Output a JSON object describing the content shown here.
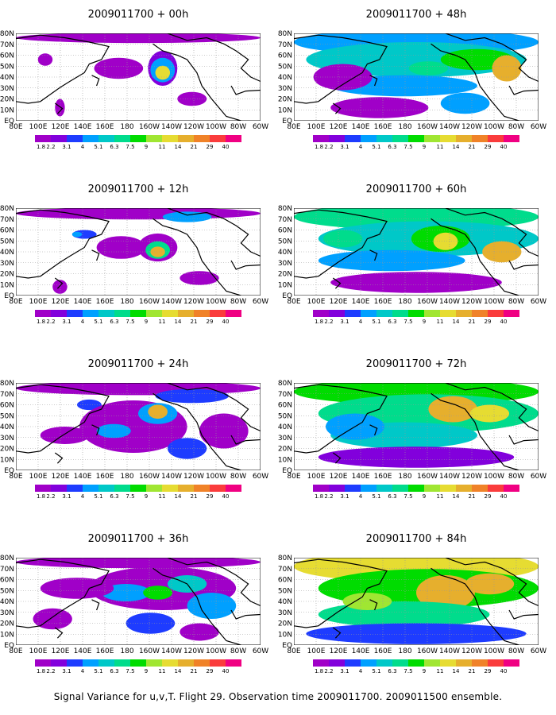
{
  "figure": {
    "caption": "Signal Variance for u,v,T. Flight 29. Observation time 2009011700. 2009011500 ensemble.",
    "longitude_ticks": [
      "80E",
      "100E",
      "120E",
      "140E",
      "160E",
      "180",
      "160W",
      "140W",
      "120W",
      "100W",
      "80W",
      "60W"
    ],
    "latitude_ticks": [
      "80N",
      "70N",
      "60N",
      "50N",
      "40N",
      "30N",
      "20N",
      "10N",
      "EQ"
    ],
    "colorbar": {
      "levels": [
        "1.8",
        "2.2",
        "3.1",
        "4",
        "5.1",
        "6.3",
        "7.5",
        "9",
        "11",
        "14",
        "21",
        "29",
        "40"
      ],
      "colors": [
        "#a000c8",
        "#8200dc",
        "#1e3cff",
        "#00a0ff",
        "#00c8c8",
        "#00dc8c",
        "#00dc00",
        "#a0e632",
        "#e6dc32",
        "#e6af2d",
        "#f08228",
        "#fa3c3c",
        "#f00082"
      ]
    },
    "panels": [
      {
        "title": "2009011700 + 00h",
        "lead": 0
      },
      {
        "title": "2009011700 + 48h",
        "lead": 48
      },
      {
        "title": "2009011700 + 12h",
        "lead": 12
      },
      {
        "title": "2009011700 + 60h",
        "lead": 60
      },
      {
        "title": "2009011700 + 24h",
        "lead": 24
      },
      {
        "title": "2009011700 + 72h",
        "lead": 72
      },
      {
        "title": "2009011700 + 36h",
        "lead": 36
      },
      {
        "title": "2009011700 + 84h",
        "lead": 84
      }
    ]
  }
}
